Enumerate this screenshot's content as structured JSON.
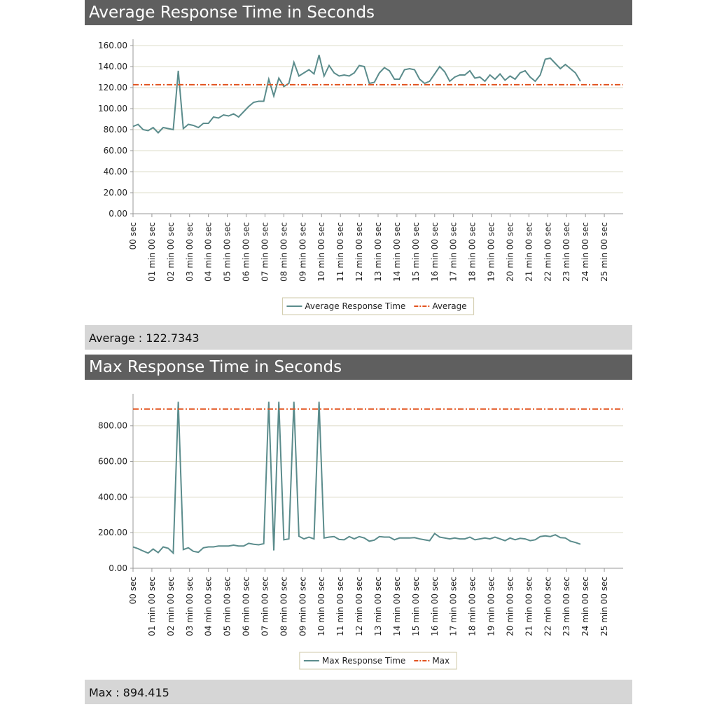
{
  "chart_data": [
    {
      "type": "line",
      "title": "Average Response Time in Seconds",
      "summary": "Average : 122.7343",
      "x": [
        0,
        16,
        32,
        48,
        64,
        80,
        96,
        112,
        128,
        144,
        160,
        176,
        192,
        208,
        224,
        240,
        256,
        272,
        288,
        304,
        320,
        336,
        352,
        368,
        384,
        400,
        416,
        432,
        448,
        464,
        480,
        496,
        512,
        528,
        544,
        560,
        576,
        592,
        608,
        624,
        640,
        656,
        672,
        688,
        704,
        720,
        736,
        752,
        768,
        784,
        800,
        816,
        832,
        848,
        864,
        880,
        896,
        912,
        928,
        944,
        960,
        976,
        992,
        1008,
        1024,
        1040,
        1056,
        1072,
        1088,
        1104,
        1120,
        1136,
        1152,
        1168,
        1184,
        1200,
        1216,
        1232,
        1248,
        1264,
        1280,
        1296,
        1312,
        1328,
        1344,
        1360,
        1376,
        1392,
        1408,
        1424
      ],
      "series": [
        {
          "name": "Average Response Time",
          "color": "#5b8c8c",
          "values": [
            83,
            85,
            80,
            79,
            82,
            77,
            82,
            81,
            80,
            136,
            81,
            85,
            84,
            82,
            86,
            86,
            92,
            91,
            94,
            93,
            95,
            92,
            97,
            102,
            106,
            107,
            107,
            128,
            112,
            129,
            121,
            124,
            144,
            131,
            134,
            137,
            133,
            151,
            131,
            141,
            134,
            131,
            132,
            131,
            134,
            141,
            140,
            124,
            125,
            134,
            139,
            136,
            128,
            128,
            137,
            138,
            137,
            128,
            124,
            126,
            133,
            140,
            135,
            126,
            130,
            132,
            132,
            136,
            129,
            130,
            126,
            132,
            128,
            133,
            127,
            131,
            128,
            134,
            136,
            130,
            126,
            132,
            147,
            148,
            143,
            138,
            142,
            138,
            134,
            126
          ]
        }
      ],
      "reference": {
        "name": "Average",
        "value": 122.7343,
        "color": "#e2531f"
      },
      "xlim": [
        0,
        1560
      ],
      "xticks": [
        {
          "value": 0,
          "label": "00 sec"
        },
        {
          "value": 60,
          "label": "01 min 00 sec"
        },
        {
          "value": 120,
          "label": "02 min 00 sec"
        },
        {
          "value": 180,
          "label": "03 min 00 sec"
        },
        {
          "value": 240,
          "label": "04 min 00 sec"
        },
        {
          "value": 300,
          "label": "05 min 00 sec"
        },
        {
          "value": 360,
          "label": "06 min 00 sec"
        },
        {
          "value": 420,
          "label": "07 min 00 sec"
        },
        {
          "value": 480,
          "label": "08 min 00 sec"
        },
        {
          "value": 540,
          "label": "09 min 00 sec"
        },
        {
          "value": 600,
          "label": "10 min 00 sec"
        },
        {
          "value": 660,
          "label": "11 min 00 sec"
        },
        {
          "value": 720,
          "label": "12 min 00 sec"
        },
        {
          "value": 780,
          "label": "13 min 00 sec"
        },
        {
          "value": 840,
          "label": "14 min 00 sec"
        },
        {
          "value": 900,
          "label": "15 min 00 sec"
        },
        {
          "value": 960,
          "label": "16 min 00 sec"
        },
        {
          "value": 1020,
          "label": "17 min 00 sec"
        },
        {
          "value": 1080,
          "label": "18 min 00 sec"
        },
        {
          "value": 1140,
          "label": "19 min 00 sec"
        },
        {
          "value": 1200,
          "label": "20 min 00 sec"
        },
        {
          "value": 1260,
          "label": "21 min 00 sec"
        },
        {
          "value": 1320,
          "label": "22 min 00 sec"
        },
        {
          "value": 1380,
          "label": "23 min 00 sec"
        },
        {
          "value": 1440,
          "label": "24 min 00 sec"
        },
        {
          "value": 1500,
          "label": "25 min 00 sec"
        }
      ],
      "ylim": [
        0,
        166
      ],
      "yticks": [
        {
          "value": 0,
          "label": "0.00"
        },
        {
          "value": 20,
          "label": "20.00"
        },
        {
          "value": 40,
          "label": "40.00"
        },
        {
          "value": 60,
          "label": "60.00"
        },
        {
          "value": 80,
          "label": "80.00"
        },
        {
          "value": 100,
          "label": "100.00"
        },
        {
          "value": 120,
          "label": "120.00"
        },
        {
          "value": 140,
          "label": "140.00"
        },
        {
          "value": 160,
          "label": "160.00"
        }
      ],
      "grid": true
    },
    {
      "type": "line",
      "title": "Max Response Time in Seconds",
      "summary": "Max : 894.415",
      "x": [
        0,
        16,
        32,
        48,
        64,
        80,
        96,
        112,
        128,
        144,
        160,
        176,
        192,
        208,
        224,
        240,
        256,
        272,
        288,
        304,
        320,
        336,
        352,
        368,
        384,
        400,
        416,
        432,
        448,
        464,
        480,
        496,
        512,
        528,
        544,
        560,
        576,
        592,
        608,
        624,
        640,
        656,
        672,
        688,
        704,
        720,
        736,
        752,
        768,
        784,
        800,
        816,
        832,
        848,
        864,
        880,
        896,
        912,
        928,
        944,
        960,
        976,
        992,
        1008,
        1024,
        1040,
        1056,
        1072,
        1088,
        1104,
        1120,
        1136,
        1152,
        1168,
        1184,
        1200,
        1216,
        1232,
        1248,
        1264,
        1280,
        1296,
        1312,
        1328,
        1344,
        1360,
        1376,
        1392,
        1408,
        1424
      ],
      "series": [
        {
          "name": "Max Response Time",
          "color": "#5b8c8c",
          "values": [
            120,
            110,
            97,
            85,
            108,
            88,
            120,
            112,
            85,
            935,
            105,
            115,
            95,
            90,
            115,
            120,
            120,
            125,
            125,
            125,
            130,
            125,
            125,
            140,
            135,
            132,
            138,
            935,
            100,
            935,
            160,
            165,
            935,
            180,
            165,
            175,
            165,
            935,
            170,
            175,
            178,
            162,
            160,
            178,
            165,
            178,
            170,
            152,
            158,
            178,
            175,
            175,
            160,
            170,
            170,
            170,
            172,
            165,
            160,
            155,
            195,
            175,
            170,
            165,
            170,
            165,
            165,
            175,
            160,
            165,
            170,
            165,
            175,
            165,
            155,
            170,
            160,
            168,
            165,
            155,
            160,
            178,
            182,
            178,
            188,
            172,
            170,
            152,
            145,
            135
          ]
        }
      ],
      "reference": {
        "name": "Max",
        "value": 894.415,
        "color": "#e2531f"
      },
      "xlim": [
        0,
        1560
      ],
      "xticks": [
        {
          "value": 0,
          "label": "00 sec"
        },
        {
          "value": 60,
          "label": "01 min 00 sec"
        },
        {
          "value": 120,
          "label": "02 min 00 sec"
        },
        {
          "value": 180,
          "label": "03 min 00 sec"
        },
        {
          "value": 240,
          "label": "04 min 00 sec"
        },
        {
          "value": 300,
          "label": "05 min 00 sec"
        },
        {
          "value": 360,
          "label": "06 min 00 sec"
        },
        {
          "value": 420,
          "label": "07 min 00 sec"
        },
        {
          "value": 480,
          "label": "08 min 00 sec"
        },
        {
          "value": 540,
          "label": "09 min 00 sec"
        },
        {
          "value": 600,
          "label": "10 min 00 sec"
        },
        {
          "value": 660,
          "label": "11 min 00 sec"
        },
        {
          "value": 720,
          "label": "12 min 00 sec"
        },
        {
          "value": 780,
          "label": "13 min 00 sec"
        },
        {
          "value": 840,
          "label": "14 min 00 sec"
        },
        {
          "value": 900,
          "label": "15 min 00 sec"
        },
        {
          "value": 960,
          "label": "16 min 00 sec"
        },
        {
          "value": 1020,
          "label": "17 min 00 sec"
        },
        {
          "value": 1080,
          "label": "18 min 00 sec"
        },
        {
          "value": 1140,
          "label": "19 min 00 sec"
        },
        {
          "value": 1200,
          "label": "20 min 00 sec"
        },
        {
          "value": 1260,
          "label": "21 min 00 sec"
        },
        {
          "value": 1320,
          "label": "22 min 00 sec"
        },
        {
          "value": 1380,
          "label": "23 min 00 sec"
        },
        {
          "value": 1440,
          "label": "24 min 00 sec"
        },
        {
          "value": 1500,
          "label": "25 min 00 sec"
        }
      ],
      "ylim": [
        0,
        980
      ],
      "yticks": [
        {
          "value": 0,
          "label": "0.00"
        },
        {
          "value": 200,
          "label": "200.00"
        },
        {
          "value": 400,
          "label": "400.00"
        },
        {
          "value": 600,
          "label": "600.00"
        },
        {
          "value": 800,
          "label": "800.00"
        }
      ],
      "grid": true
    }
  ]
}
